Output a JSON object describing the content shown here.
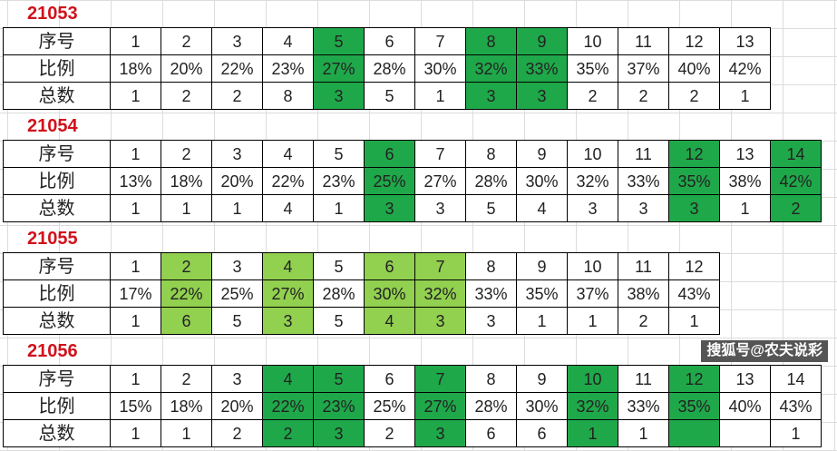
{
  "labels": {
    "index": "序号",
    "ratio": "比例",
    "total": "总数"
  },
  "colors": {
    "dark_green": "#1fa84a",
    "light_green": "#92d050",
    "title_red": "#d0121b"
  },
  "sections": [
    {
      "title": "21053",
      "highlight": "dark",
      "hl": [
        5,
        8,
        9
      ],
      "index": [
        "1",
        "2",
        "3",
        "4",
        "5",
        "6",
        "7",
        "8",
        "9",
        "10",
        "11",
        "12",
        "13"
      ],
      "ratio": [
        "18%",
        "20%",
        "22%",
        "23%",
        "27%",
        "28%",
        "30%",
        "32%",
        "33%",
        "35%",
        "37%",
        "40%",
        "42%"
      ],
      "total": [
        "1",
        "2",
        "2",
        "8",
        "3",
        "5",
        "1",
        "3",
        "3",
        "2",
        "2",
        "2",
        "1"
      ]
    },
    {
      "title": "21054",
      "highlight": "dark",
      "hl": [
        6,
        12,
        14
      ],
      "index": [
        "1",
        "2",
        "3",
        "4",
        "5",
        "6",
        "7",
        "8",
        "9",
        "10",
        "11",
        "12",
        "13",
        "14"
      ],
      "ratio": [
        "13%",
        "18%",
        "20%",
        "22%",
        "23%",
        "25%",
        "27%",
        "28%",
        "30%",
        "32%",
        "33%",
        "35%",
        "38%",
        "42%"
      ],
      "total": [
        "1",
        "1",
        "1",
        "4",
        "1",
        "3",
        "3",
        "5",
        "4",
        "3",
        "3",
        "3",
        "1",
        "2"
      ]
    },
    {
      "title": "21055",
      "highlight": "light",
      "hl": [
        2,
        4,
        6,
        7
      ],
      "index": [
        "1",
        "2",
        "3",
        "4",
        "5",
        "6",
        "7",
        "8",
        "9",
        "10",
        "11",
        "12"
      ],
      "ratio": [
        "17%",
        "22%",
        "25%",
        "27%",
        "28%",
        "30%",
        "32%",
        "33%",
        "35%",
        "37%",
        "38%",
        "43%"
      ],
      "total": [
        "1",
        "6",
        "5",
        "3",
        "5",
        "4",
        "3",
        "3",
        "1",
        "1",
        "2",
        "1"
      ]
    },
    {
      "title": "21056",
      "highlight": "dark",
      "hl": [
        4,
        5,
        7,
        10,
        12
      ],
      "index": [
        "1",
        "2",
        "3",
        "4",
        "5",
        "6",
        "7",
        "8",
        "9",
        "10",
        "11",
        "12",
        "13",
        "14"
      ],
      "ratio": [
        "15%",
        "18%",
        "20%",
        "22%",
        "23%",
        "25%",
        "27%",
        "28%",
        "30%",
        "32%",
        "33%",
        "35%",
        "40%",
        "43%"
      ],
      "total": [
        "1",
        "1",
        "2",
        "2",
        "3",
        "2",
        "3",
        "6",
        "6",
        "1",
        "1",
        "",
        "",
        "1"
      ]
    }
  ],
  "watermark": "搜狐号@农夫说彩"
}
